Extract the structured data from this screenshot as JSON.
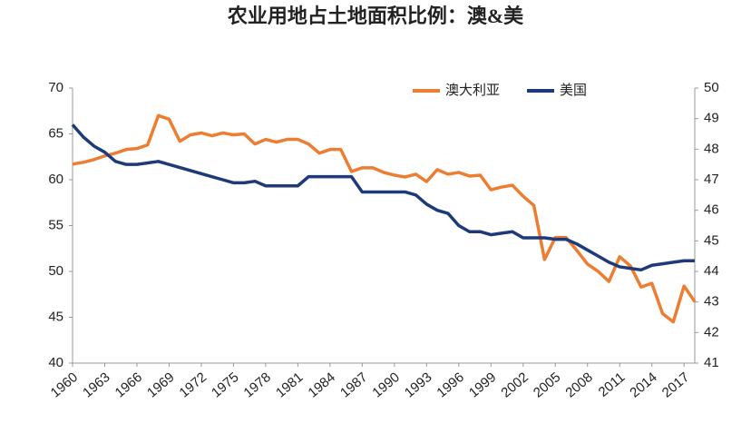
{
  "chart_data": {
    "type": "line",
    "title": "农业用地占土地面积比例：澳&美",
    "x": [
      1960,
      1961,
      1962,
      1963,
      1964,
      1965,
      1966,
      1967,
      1968,
      1969,
      1970,
      1971,
      1972,
      1973,
      1974,
      1975,
      1976,
      1977,
      1978,
      1979,
      1980,
      1981,
      1982,
      1983,
      1984,
      1985,
      1986,
      1987,
      1988,
      1989,
      1990,
      1991,
      1992,
      1993,
      1994,
      1995,
      1996,
      1997,
      1998,
      1999,
      2000,
      2001,
      2002,
      2003,
      2004,
      2005,
      2006,
      2007,
      2008,
      2009,
      2010,
      2011,
      2012,
      2013,
      2014,
      2015,
      2016,
      2017,
      2018
    ],
    "xlim": [
      1960,
      2018
    ],
    "xticks": [
      1960,
      1963,
      1966,
      1969,
      1972,
      1975,
      1978,
      1981,
      1984,
      1987,
      1990,
      1993,
      1996,
      1999,
      2002,
      2005,
      2008,
      2011,
      2014,
      2017
    ],
    "ylim": [
      40,
      70
    ],
    "yticks": [
      40,
      45,
      50,
      55,
      60,
      65,
      70
    ],
    "y2lim": [
      41,
      50
    ],
    "y2ticks": [
      41,
      42,
      43,
      44,
      45,
      46,
      47,
      48,
      49,
      50
    ],
    "legend": "top-right",
    "series": [
      {
        "name": "澳大利亚",
        "color": "#ed7d31",
        "axis": "y",
        "values": [
          61.7,
          61.9,
          62.2,
          62.6,
          62.9,
          63.3,
          63.4,
          63.8,
          67.0,
          66.6,
          64.2,
          64.9,
          65.1,
          64.8,
          65.1,
          64.9,
          65.0,
          63.9,
          64.4,
          64.1,
          64.4,
          64.4,
          63.9,
          62.9,
          63.3,
          63.3,
          60.9,
          61.3,
          61.3,
          60.8,
          60.5,
          60.3,
          60.6,
          59.8,
          61.1,
          60.6,
          60.8,
          60.4,
          60.5,
          58.9,
          59.2,
          59.4,
          58.2,
          57.2,
          51.3,
          53.7,
          53.7,
          52.3,
          50.8,
          50.0,
          48.9,
          51.6,
          50.6,
          48.3,
          48.7,
          45.4,
          44.5,
          48.4,
          46.7
        ]
      },
      {
        "name": "美国",
        "color": "#1f3a7a",
        "axis": "y2",
        "values": [
          48.8,
          48.4,
          48.1,
          47.9,
          47.6,
          47.5,
          47.5,
          47.55,
          47.6,
          47.5,
          47.4,
          47.3,
          47.2,
          47.1,
          47.0,
          46.9,
          46.9,
          46.95,
          46.8,
          46.8,
          46.8,
          46.8,
          47.1,
          47.1,
          47.1,
          47.1,
          47.1,
          46.6,
          46.6,
          46.6,
          46.6,
          46.6,
          46.5,
          46.2,
          46.0,
          45.9,
          45.5,
          45.3,
          45.3,
          45.2,
          45.25,
          45.3,
          45.1,
          45.1,
          45.1,
          45.05,
          45.05,
          44.9,
          44.7,
          44.5,
          44.3,
          44.15,
          44.1,
          44.05,
          44.2,
          44.25,
          44.3,
          44.35,
          44.35
        ]
      }
    ]
  }
}
